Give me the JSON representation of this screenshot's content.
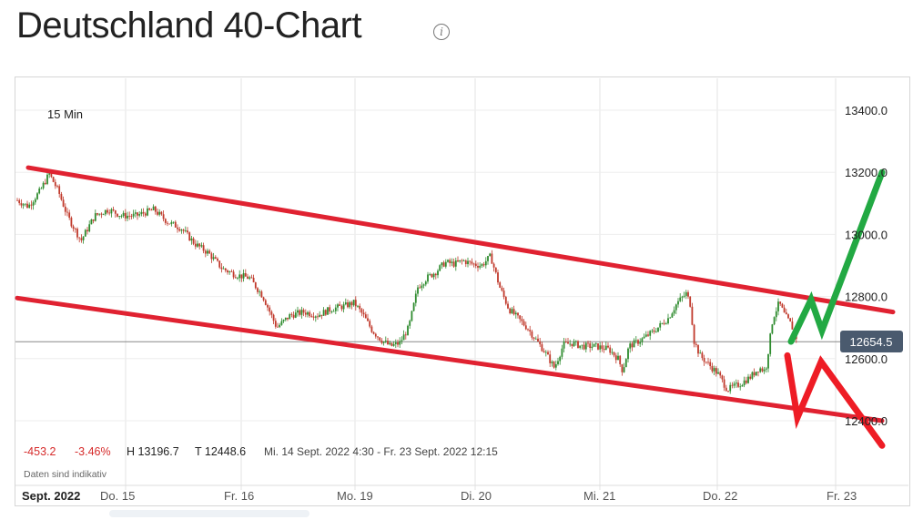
{
  "page": {
    "title": "Deutschland 40-Chart",
    "info_icon": "info-icon"
  },
  "chart_data": {
    "type": "candlestick",
    "interval_label": "15 Min",
    "ylim": [
      12340,
      13470
    ],
    "yticks": [
      "13400.0",
      "13200.0",
      "13000.0",
      "12800.0",
      "12600.0",
      "12400.0"
    ],
    "last_price_label": "12654.5",
    "last_price": 12654.5,
    "x_labels": [
      "Sept. 2022",
      "Do. 15",
      "Fr. 16",
      "Mo. 19",
      "Di. 20",
      "Mi. 21",
      "Do. 22",
      "Fr. 23"
    ],
    "stats": {
      "change_abs": "-453.2",
      "change_pct": "-3.46%",
      "high": "H 13196.7",
      "low": "T 12448.6",
      "range": "Mi. 14 Sept. 2022 4:30 - Fr. 23 Sept. 2022 12:15"
    },
    "disclaimer": "Daten sind indikativ",
    "price_path": [
      [
        0,
        13110
      ],
      [
        12,
        13090
      ],
      [
        25,
        13140
      ],
      [
        35,
        13195
      ],
      [
        45,
        13140
      ],
      [
        55,
        13060
      ],
      [
        70,
        12980
      ],
      [
        85,
        13060
      ],
      [
        100,
        13080
      ],
      [
        115,
        13060
      ],
      [
        130,
        13060
      ],
      [
        150,
        13080
      ],
      [
        165,
        13040
      ],
      [
        180,
        13020
      ],
      [
        195,
        12970
      ],
      [
        210,
        12940
      ],
      [
        225,
        12890
      ],
      [
        240,
        12870
      ],
      [
        255,
        12860
      ],
      [
        270,
        12800
      ],
      [
        285,
        12700
      ],
      [
        300,
        12740
      ],
      [
        315,
        12750
      ],
      [
        330,
        12740
      ],
      [
        345,
        12760
      ],
      [
        360,
        12770
      ],
      [
        370,
        12780
      ],
      [
        380,
        12740
      ],
      [
        390,
        12690
      ],
      [
        400,
        12660
      ],
      [
        410,
        12640
      ],
      [
        420,
        12650
      ],
      [
        430,
        12700
      ],
      [
        440,
        12830
      ],
      [
        450,
        12860
      ],
      [
        460,
        12880
      ],
      [
        470,
        12910
      ],
      [
        480,
        12905
      ],
      [
        490,
        12915
      ],
      [
        500,
        12905
      ],
      [
        510,
        12900
      ],
      [
        520,
        12930
      ],
      [
        530,
        12830
      ],
      [
        540,
        12760
      ],
      [
        550,
        12730
      ],
      [
        560,
        12700
      ],
      [
        570,
        12660
      ],
      [
        580,
        12620
      ],
      [
        590,
        12570
      ],
      [
        600,
        12645
      ],
      [
        610,
        12650
      ],
      [
        620,
        12640
      ],
      [
        635,
        12640
      ],
      [
        650,
        12630
      ],
      [
        660,
        12600
      ],
      [
        665,
        12560
      ],
      [
        672,
        12640
      ],
      [
        685,
        12660
      ],
      [
        700,
        12690
      ],
      [
        715,
        12730
      ],
      [
        725,
        12780
      ],
      [
        735,
        12810
      ],
      [
        740,
        12770
      ],
      [
        743,
        12660
      ],
      [
        750,
        12610
      ],
      [
        760,
        12580
      ],
      [
        770,
        12550
      ],
      [
        780,
        12500
      ],
      [
        795,
        12520
      ],
      [
        805,
        12540
      ],
      [
        815,
        12570
      ],
      [
        822,
        12560
      ],
      [
        830,
        12730
      ],
      [
        837,
        12780
      ],
      [
        843,
        12740
      ],
      [
        850,
        12710
      ],
      [
        857,
        12660
      ]
    ],
    "annotations": {
      "channel_upper": [
        [
          12,
          13215
        ],
        [
          962,
          12750
        ]
      ],
      "channel_lower": [
        [
          0,
          12795
        ],
        [
          950,
          12400
        ]
      ],
      "green_arrow": [
        [
          850,
          12655
        ],
        [
          872,
          12790
        ],
        [
          884,
          12690
        ],
        [
          950,
          13200
        ]
      ],
      "red_arrow": [
        [
          846,
          12610
        ],
        [
          857,
          12410
        ],
        [
          883,
          12590
        ],
        [
          950,
          12320
        ]
      ]
    },
    "colors": {
      "up": "#2e8b2e",
      "down": "#c0392b",
      "channel": "#e02231",
      "bull": "#22a943",
      "bear": "#ee1c25"
    }
  }
}
